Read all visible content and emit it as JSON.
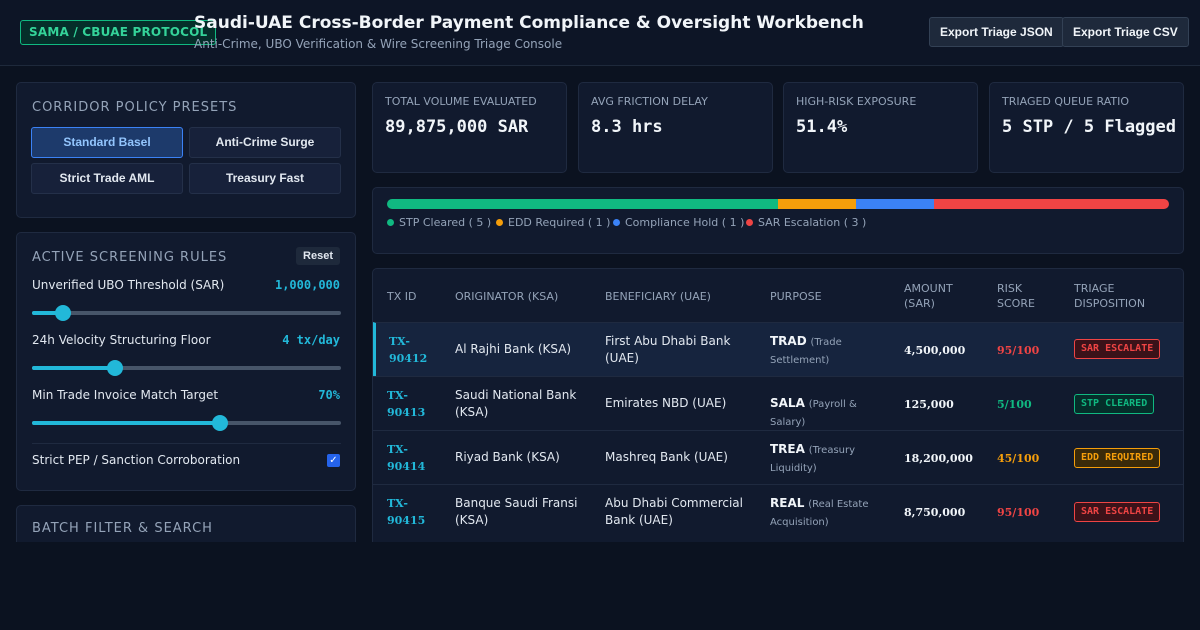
{
  "header": {
    "badge": "SAMA / CBUAE PROTOCOL",
    "title": "Saudi-UAE Cross-Border Payment Compliance & Oversight Workbench",
    "subtitle": "Anti-Crime, UBO Verification & Wire Screening Triage Console",
    "export_json": "Export Triage JSON",
    "export_csv": "Export Triage CSV"
  },
  "presets": {
    "title": "CORRIDOR POLICY PRESETS",
    "items": [
      {
        "label": "Standard Basel",
        "active": true
      },
      {
        "label": "Anti-Crime Surge",
        "active": false
      },
      {
        "label": "Strict Trade AML",
        "active": false
      },
      {
        "label": "Treasury Fast",
        "active": false
      }
    ]
  },
  "rules": {
    "title": "ACTIVE SCREENING RULES",
    "reset": "Reset",
    "sliders": [
      {
        "label": "Unverified UBO Threshold (SAR)",
        "value": "1,000,000",
        "fraction": 0.1
      },
      {
        "label": "24h Velocity Structuring Floor",
        "value": "4 tx/day",
        "fraction": 0.27
      },
      {
        "label": "Min Trade Invoice Match Target",
        "value": "70%",
        "fraction": 0.61
      }
    ],
    "checkbox": {
      "label": "Strict PEP / Sanction Corroboration",
      "checked": true
    }
  },
  "batch": {
    "title": "BATCH FILTER & SEARCH"
  },
  "kpis": [
    {
      "label": "TOTAL VOLUME EVALUATED",
      "value": "89,875,000 SAR"
    },
    {
      "label": "AVG FRICTION DELAY",
      "value": "8.3 hrs"
    },
    {
      "label": "HIGH-RISK EXPOSURE",
      "value": "51.4%"
    },
    {
      "label": "TRIAGED QUEUE RATIO",
      "value": "5 STP / 5 Flagged"
    }
  ],
  "distribution": {
    "segments": [
      {
        "label": "STP Cleared",
        "count": 5,
        "color": "#10b981"
      },
      {
        "label": "EDD Required",
        "count": 1,
        "color": "#f59e0b"
      },
      {
        "label": "Compliance Hold",
        "count": 1,
        "color": "#3b82f6"
      },
      {
        "label": "SAR Escalation",
        "count": 3,
        "color": "#ef4444"
      }
    ]
  },
  "table": {
    "headers": [
      "TX ID",
      "ORIGINATOR (KSA)",
      "BENEFICIARY (UAE)",
      "PURPOSE",
      "AMOUNT (SAR)",
      "RISK SCORE",
      "TRIAGE DISPOSITION"
    ],
    "rows": [
      {
        "tx_line1": "TX-",
        "tx_line2": "90412",
        "originator": "Al Rajhi Bank (KSA)",
        "beneficiary": "First Abu Dhabi Bank (UAE)",
        "purpose_code": "TRAD",
        "purpose_desc": "(Trade Settlement)",
        "amount": "4,500,000",
        "risk": "95/100",
        "risk_color": "#ef4444",
        "disposition": "SAR ESCALATE",
        "disp_color": "#ef4444",
        "disp_bg": "#3b1219",
        "selected": true
      },
      {
        "tx_line1": "TX-",
        "tx_line2": "90413",
        "originator": "Saudi National Bank (KSA)",
        "beneficiary": "Emirates NBD (UAE)",
        "purpose_code": "SALA",
        "purpose_desc": "(Payroll & Salary)",
        "amount": "125,000",
        "risk": "5/100",
        "risk_color": "#10b981",
        "disposition": "STP CLEARED",
        "disp_color": "#10b981",
        "disp_bg": "#052e2a",
        "selected": false
      },
      {
        "tx_line1": "TX-",
        "tx_line2": "90414",
        "originator": "Riyad Bank (KSA)",
        "beneficiary": "Mashreq Bank (UAE)",
        "purpose_code": "TREA",
        "purpose_desc": "(Treasury Liquidity)",
        "amount": "18,200,000",
        "risk": "45/100",
        "risk_color": "#f59e0b",
        "disposition": "EDD REQUIRED",
        "disp_color": "#f59e0b",
        "disp_bg": "#3a2a0a",
        "selected": false
      },
      {
        "tx_line1": "TX-",
        "tx_line2": "90415",
        "originator": "Banque Saudi Fransi (KSA)",
        "beneficiary": "Abu Dhabi Commercial Bank (UAE)",
        "purpose_code": "REAL",
        "purpose_desc": "(Real Estate Acquisition)",
        "amount": "8,750,000",
        "risk": "95/100",
        "risk_color": "#ef4444",
        "disposition": "SAR ESCALATE",
        "disp_color": "#ef4444",
        "disp_bg": "#3b1219",
        "selected": false
      }
    ]
  }
}
